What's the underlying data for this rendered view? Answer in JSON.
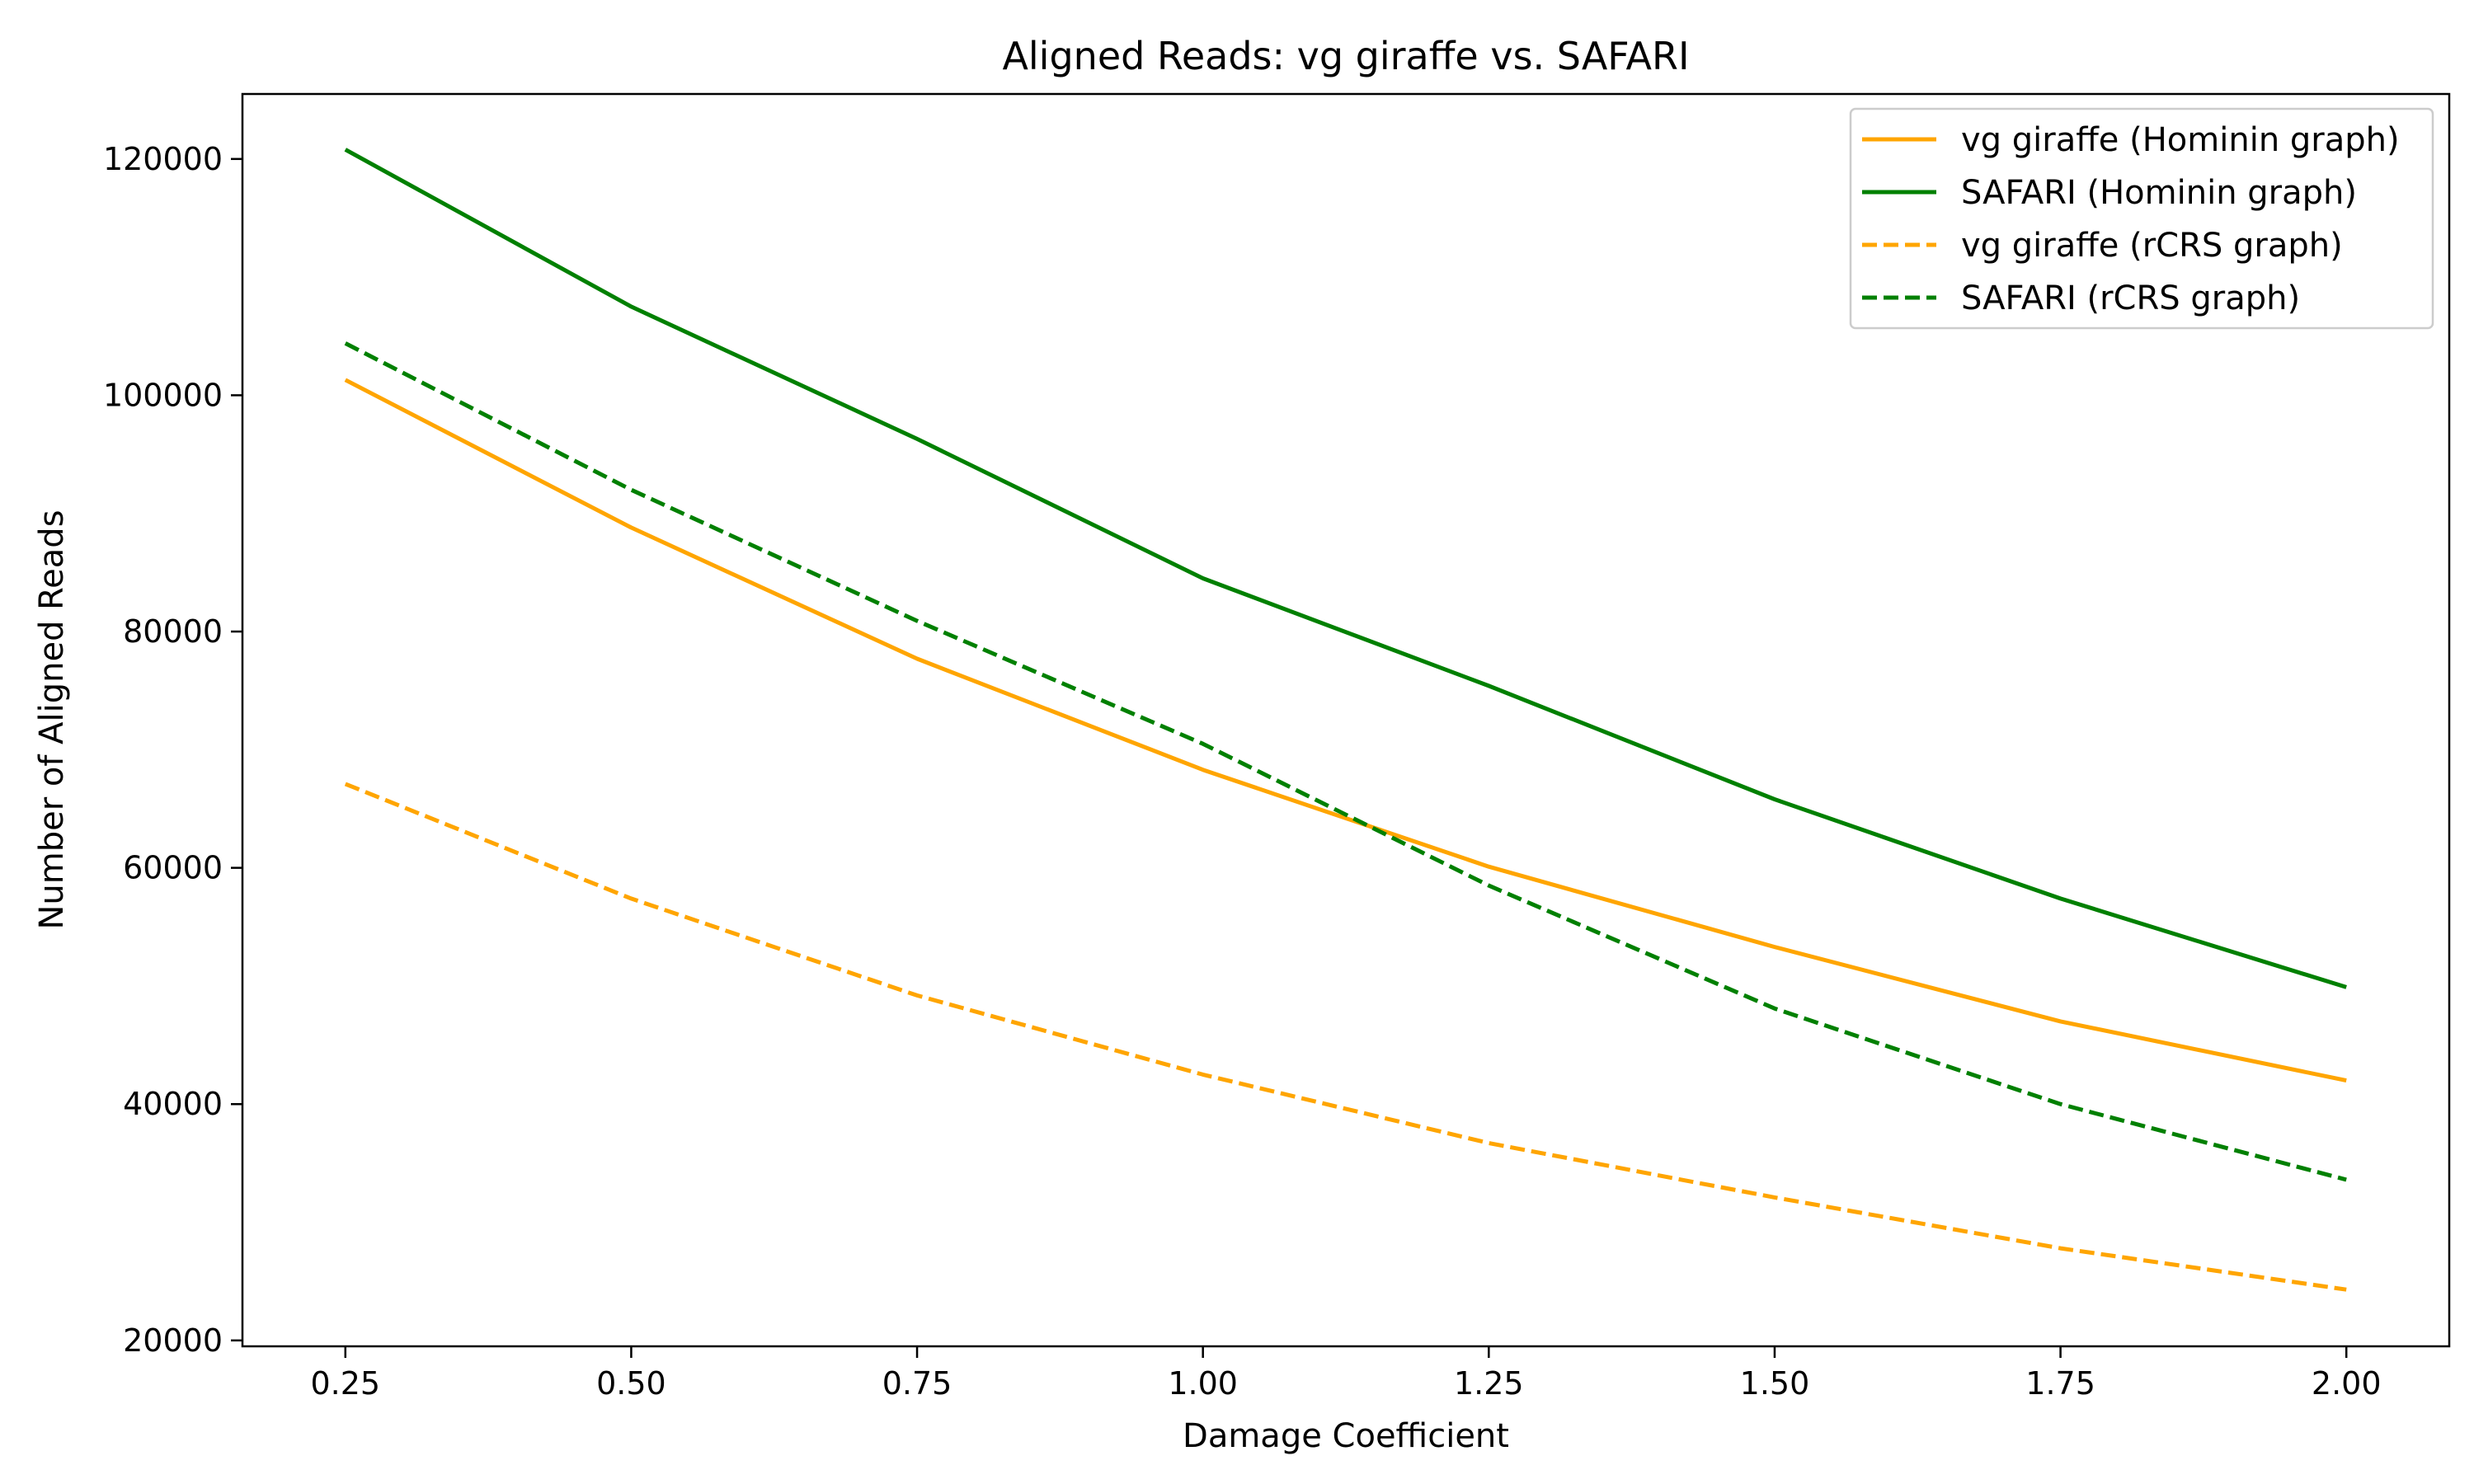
{
  "chart_data": {
    "type": "line",
    "title": "Aligned Reads: vg giraffe vs. SAFARI",
    "xlabel": "Damage Coefficient",
    "ylabel": "Number of Aligned Reads",
    "x": [
      0.25,
      0.5,
      0.75,
      1.0,
      1.25,
      1.5,
      1.75,
      2.0
    ],
    "x_tick_labels": [
      "0.25",
      "0.50",
      "0.75",
      "1.00",
      "1.25",
      "1.50",
      "1.75",
      "2.00"
    ],
    "y_ticks": [
      20000,
      40000,
      60000,
      80000,
      100000,
      120000
    ],
    "y_tick_labels": [
      "20000",
      "40000",
      "60000",
      "80000",
      "100000",
      "120000"
    ],
    "xlim": [
      0.16,
      2.09
    ],
    "ylim": [
      19500,
      125500
    ],
    "grid": false,
    "legend_position": "top-right",
    "series": [
      {
        "name": "vg giraffe (Hominin graph)",
        "color": "#FFA500",
        "dash": "solid",
        "values": [
          101300,
          88800,
          77700,
          68300,
          60100,
          53300,
          47000,
          42000
        ]
      },
      {
        "name": "SAFARI (Hominin graph)",
        "color": "#008000",
        "dash": "solid",
        "values": [
          120800,
          107500,
          96300,
          84500,
          75400,
          65800,
          57400,
          49900
        ]
      },
      {
        "name": "vg giraffe (rCRS graph)",
        "color": "#FFA500",
        "dash": "dashed",
        "values": [
          67100,
          57400,
          49200,
          42500,
          36700,
          32100,
          27800,
          24300
        ]
      },
      {
        "name": "SAFARI (rCRS graph)",
        "color": "#008000",
        "dash": "dashed",
        "values": [
          104400,
          92000,
          80900,
          70500,
          58500,
          48100,
          40000,
          33600
        ]
      }
    ]
  }
}
